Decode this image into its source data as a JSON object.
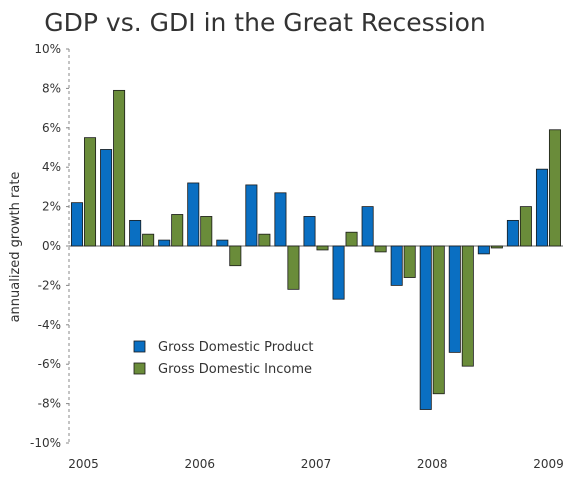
{
  "chart_data": {
    "type": "bar",
    "title": "GDP vs. GDI in the Great Recession",
    "xlabel": "",
    "ylabel": "annualized growth rate",
    "ylim": [
      -10,
      10
    ],
    "ytick_values": [
      -10,
      -8,
      -6,
      -4,
      -2,
      0,
      2,
      4,
      6,
      8,
      10
    ],
    "ytick_labels": [
      "-10%",
      "-8%",
      "-6%",
      "-4%",
      "-2%",
      "0%",
      "2%",
      "4%",
      "6%",
      "8%",
      "10%"
    ],
    "categories": [
      "2005 Q1",
      "2005 Q2",
      "2005 Q3",
      "2005 Q4",
      "2006 Q1",
      "2006 Q2",
      "2006 Q3",
      "2006 Q4",
      "2007 Q1",
      "2007 Q2",
      "2007 Q3",
      "2007 Q4",
      "2008 Q1",
      "2008 Q2",
      "2008 Q3",
      "2008 Q4",
      "2009 Q1"
    ],
    "xtick_labels": [
      {
        "label": "2005",
        "category_index": 0
      },
      {
        "label": "2006",
        "category_index": 4
      },
      {
        "label": "2007",
        "category_index": 8
      },
      {
        "label": "2008",
        "category_index": 12
      },
      {
        "label": "2009",
        "category_index": 16
      }
    ],
    "series": [
      {
        "name": "Gross Domestic Product",
        "color": "#0a6fc2",
        "values": [
          2.2,
          4.9,
          1.3,
          0.3,
          3.2,
          0.3,
          3.1,
          2.7,
          1.5,
          -2.7,
          2.0,
          -2.0,
          -8.3,
          -5.4,
          -0.4,
          1.3,
          3.9
        ]
      },
      {
        "name": "Gross Domestic Income",
        "color": "#6a8c3a",
        "values": [
          5.5,
          7.9,
          0.6,
          1.6,
          1.5,
          -1.0,
          0.6,
          -2.2,
          -0.2,
          0.7,
          -0.3,
          -1.6,
          -7.5,
          -6.1,
          -0.1,
          2.0,
          5.9
        ]
      }
    ],
    "grid": false,
    "legend_position": "lower-left inside plot"
  }
}
